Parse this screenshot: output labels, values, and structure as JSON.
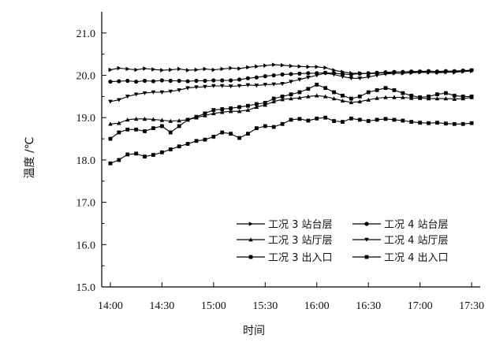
{
  "chart_data": {
    "type": "line",
    "title": "",
    "xlabel": "时间",
    "ylabel": "温度 /℃",
    "ylim": [
      15.0,
      21.5
    ],
    "xlim": [
      "13:55",
      "17:35"
    ],
    "x_ticks": [
      "14:00",
      "14:30",
      "15:00",
      "15:30",
      "16:00",
      "16:30",
      "17:00",
      "17:30"
    ],
    "y_ticks": [
      "15.0",
      "16.0",
      "17.0",
      "18.0",
      "19.0",
      "20.0",
      "21.0"
    ],
    "grid": false,
    "legend_position": "bottom-right",
    "series": [
      {
        "name": "工况 3 站台层",
        "marker": "triangle-right",
        "x": [
          "14:00",
          "14:05",
          "14:10",
          "14:15",
          "14:20",
          "14:25",
          "14:30",
          "14:35",
          "14:40",
          "14:45",
          "14:50",
          "14:55",
          "15:00",
          "15:05",
          "15:10",
          "15:15",
          "15:20",
          "15:25",
          "15:30",
          "15:35",
          "15:40",
          "15:45",
          "15:50",
          "15:55",
          "16:00",
          "16:05",
          "16:10",
          "16:15",
          "16:20",
          "16:25",
          "16:30",
          "16:35",
          "16:40",
          "16:45",
          "16:50",
          "16:55",
          "17:00",
          "17:05",
          "17:10",
          "17:15",
          "17:20",
          "17:25",
          "17:30"
        ],
        "values": [
          20.13,
          20.17,
          20.15,
          20.13,
          20.16,
          20.14,
          20.12,
          20.13,
          20.15,
          20.12,
          20.13,
          20.15,
          20.13,
          20.15,
          20.17,
          20.16,
          20.19,
          20.21,
          20.23,
          20.25,
          20.24,
          20.22,
          20.21,
          20.2,
          20.2,
          20.18,
          20.12,
          20.08,
          20.05,
          20.05,
          20.04,
          20.05,
          20.06,
          20.05,
          20.05,
          20.06,
          20.07,
          20.07,
          20.07,
          20.08,
          20.07,
          20.09,
          20.1
        ]
      },
      {
        "name": "工况 4 站台层",
        "marker": "circle",
        "x": [
          "14:00",
          "14:05",
          "14:10",
          "14:15",
          "14:20",
          "14:25",
          "14:30",
          "14:35",
          "14:40",
          "14:45",
          "14:50",
          "14:55",
          "15:00",
          "15:05",
          "15:10",
          "15:15",
          "15:20",
          "15:25",
          "15:30",
          "15:35",
          "15:40",
          "15:45",
          "15:50",
          "15:55",
          "16:00",
          "16:05",
          "16:10",
          "16:15",
          "16:20",
          "16:25",
          "16:30",
          "16:35",
          "16:40",
          "16:45",
          "16:50",
          "16:55",
          "17:00",
          "17:05",
          "17:10",
          "17:15",
          "17:20",
          "17:25",
          "17:30"
        ],
        "values": [
          19.85,
          19.86,
          19.87,
          19.85,
          19.87,
          19.86,
          19.88,
          19.87,
          19.87,
          19.86,
          19.87,
          19.87,
          19.88,
          19.88,
          19.88,
          19.9,
          19.93,
          19.95,
          19.98,
          20.0,
          20.02,
          20.03,
          20.04,
          20.05,
          20.05,
          20.06,
          20.05,
          20.03,
          20.02,
          20.04,
          20.05,
          20.06,
          20.07,
          20.08,
          20.08,
          20.09,
          20.09,
          20.1,
          20.09,
          20.1,
          20.1,
          20.11,
          20.12
        ]
      },
      {
        "name": "工况 3 站厅层",
        "marker": "triangle-up",
        "x": [
          "14:00",
          "14:05",
          "14:10",
          "14:15",
          "14:20",
          "14:25",
          "14:30",
          "14:35",
          "14:40",
          "14:45",
          "14:50",
          "14:55",
          "15:00",
          "15:05",
          "15:10",
          "15:15",
          "15:20",
          "15:25",
          "15:30",
          "15:35",
          "15:40",
          "15:45",
          "15:50",
          "15:55",
          "16:00",
          "16:05",
          "16:10",
          "16:15",
          "16:20",
          "16:25",
          "16:30",
          "16:35",
          "16:40",
          "16:45",
          "16:50",
          "16:55",
          "17:00",
          "17:05",
          "17:10",
          "17:15",
          "17:20",
          "17:25",
          "17:30"
        ],
        "values": [
          18.85,
          18.87,
          18.95,
          18.97,
          18.97,
          18.96,
          18.94,
          18.92,
          18.93,
          18.95,
          19.0,
          19.05,
          19.1,
          19.13,
          19.15,
          19.15,
          19.18,
          19.25,
          19.3,
          19.38,
          19.43,
          19.45,
          19.47,
          19.5,
          19.52,
          19.5,
          19.45,
          19.4,
          19.36,
          19.38,
          19.42,
          19.46,
          19.48,
          19.48,
          19.48,
          19.46,
          19.46,
          19.45,
          19.45,
          19.45,
          19.44,
          19.45,
          19.48
        ]
      },
      {
        "name": "工况 4 站厅层",
        "marker": "triangle-down",
        "x": [
          "14:00",
          "14:05",
          "14:10",
          "14:15",
          "14:20",
          "14:25",
          "14:30",
          "14:35",
          "14:40",
          "14:45",
          "14:50",
          "14:55",
          "15:00",
          "15:05",
          "15:10",
          "15:15",
          "15:20",
          "15:25",
          "15:30",
          "15:35",
          "15:40",
          "15:45",
          "15:50",
          "15:55",
          "16:00",
          "16:05",
          "16:10",
          "16:15",
          "16:20",
          "16:25",
          "16:30",
          "16:35",
          "16:40",
          "16:45",
          "16:50",
          "16:55",
          "17:00",
          "17:05",
          "17:10",
          "17:15",
          "17:20",
          "17:25",
          "17:30"
        ],
        "values": [
          19.38,
          19.42,
          19.5,
          19.55,
          19.58,
          19.6,
          19.6,
          19.62,
          19.65,
          19.7,
          19.72,
          19.73,
          19.75,
          19.75,
          19.74,
          19.75,
          19.77,
          19.76,
          19.78,
          19.79,
          19.8,
          19.85,
          19.9,
          19.95,
          20.0,
          20.05,
          20.02,
          19.97,
          19.93,
          19.93,
          19.96,
          20.0,
          20.03,
          20.05,
          20.05,
          20.07,
          20.08,
          20.07,
          20.06,
          20.07,
          20.08,
          20.1,
          20.12
        ]
      },
      {
        "name": "工况 3 出入口",
        "marker": "square",
        "x": [
          "14:00",
          "14:05",
          "14:10",
          "14:15",
          "14:20",
          "14:25",
          "14:30",
          "14:35",
          "14:40",
          "14:45",
          "14:50",
          "14:55",
          "15:00",
          "15:05",
          "15:10",
          "15:15",
          "15:20",
          "15:25",
          "15:30",
          "15:35",
          "15:40",
          "15:45",
          "15:50",
          "15:55",
          "16:00",
          "16:05",
          "16:10",
          "16:15",
          "16:20",
          "16:25",
          "16:30",
          "16:35",
          "16:40",
          "16:45",
          "16:50",
          "16:55",
          "17:00",
          "17:05",
          "17:10",
          "17:15",
          "17:20",
          "17:25",
          "17:30"
        ],
        "values": [
          17.92,
          18.0,
          18.13,
          18.15,
          18.08,
          18.12,
          18.18,
          18.25,
          18.32,
          18.38,
          18.45,
          18.48,
          18.55,
          18.65,
          18.62,
          18.52,
          18.62,
          18.75,
          18.8,
          18.78,
          18.85,
          18.95,
          18.97,
          18.93,
          18.98,
          19.0,
          18.92,
          18.9,
          18.98,
          18.95,
          18.92,
          18.95,
          18.97,
          18.95,
          18.93,
          18.9,
          18.88,
          18.87,
          18.88,
          18.86,
          18.85,
          18.85,
          18.87
        ]
      },
      {
        "name": "工况 4 出入口",
        "marker": "square",
        "x": [
          "14:00",
          "14:05",
          "14:10",
          "14:15",
          "14:20",
          "14:25",
          "14:30",
          "14:35",
          "14:40",
          "14:45",
          "14:50",
          "14:55",
          "15:00",
          "15:05",
          "15:10",
          "15:15",
          "15:20",
          "15:25",
          "15:30",
          "15:35",
          "15:40",
          "15:45",
          "15:50",
          "15:55",
          "16:00",
          "16:05",
          "16:10",
          "16:15",
          "16:20",
          "16:25",
          "16:30",
          "16:35",
          "16:40",
          "16:45",
          "16:50",
          "16:55",
          "17:00",
          "17:05",
          "17:10",
          "17:15",
          "17:20",
          "17:25",
          "17:30"
        ],
        "values": [
          18.5,
          18.65,
          18.72,
          18.72,
          18.68,
          18.75,
          18.8,
          18.65,
          18.8,
          18.95,
          19.02,
          19.1,
          19.18,
          19.2,
          19.22,
          19.25,
          19.28,
          19.32,
          19.35,
          19.45,
          19.5,
          19.55,
          19.6,
          19.68,
          19.78,
          19.7,
          19.6,
          19.52,
          19.45,
          19.5,
          19.6,
          19.65,
          19.7,
          19.65,
          19.58,
          19.52,
          19.48,
          19.5,
          19.55,
          19.58,
          19.52,
          19.5,
          19.5
        ]
      }
    ]
  }
}
